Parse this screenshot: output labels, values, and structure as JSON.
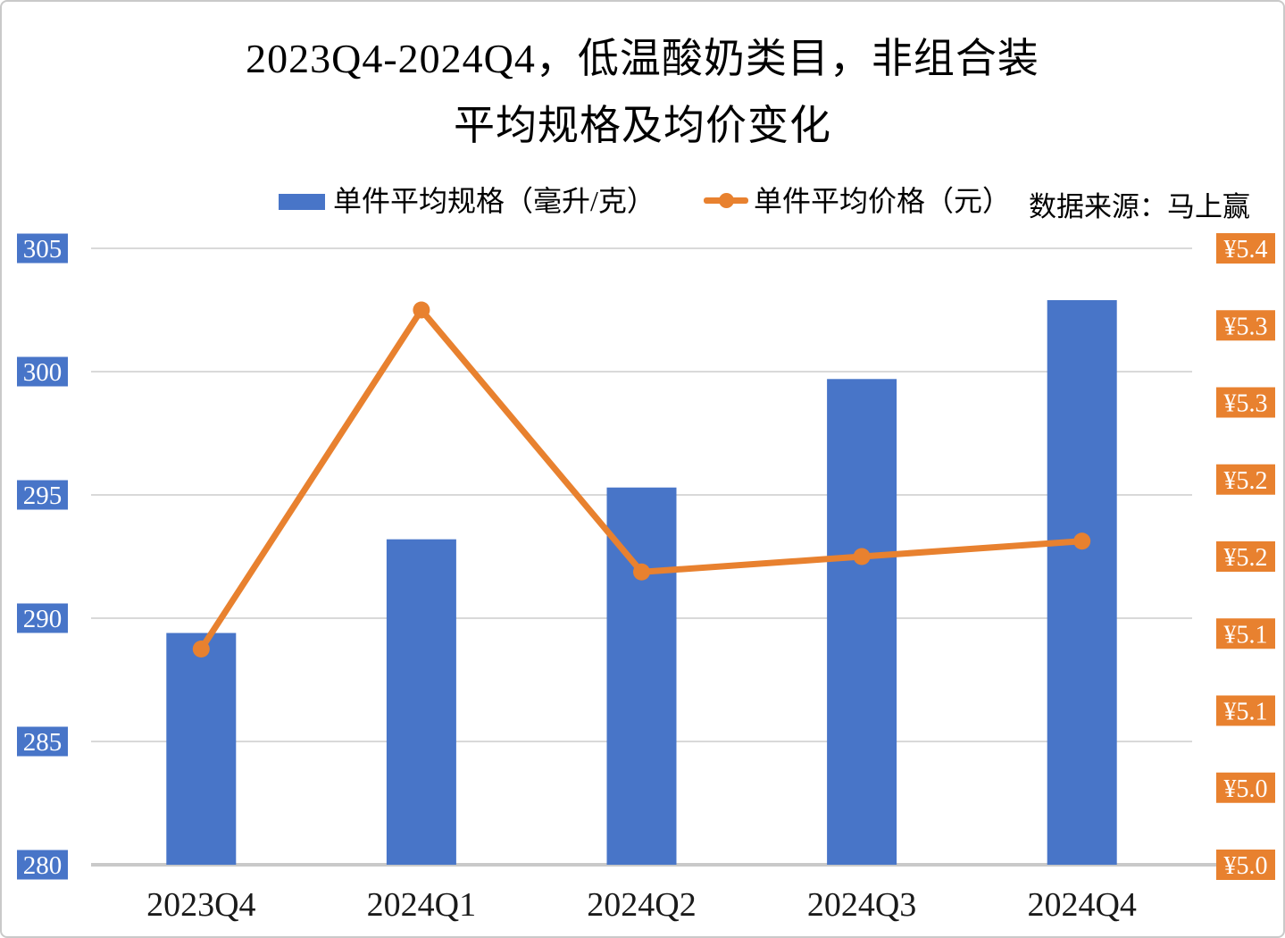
{
  "title": {
    "line1": "2023Q4-2024Q4，低温酸奶类目，非组合装",
    "line2": "平均规格及均价变化"
  },
  "legend": {
    "bar_label": "单件平均规格（毫升/克）",
    "line_label": "单件平均价格（元）",
    "source": "数据来源：马上赢"
  },
  "colors": {
    "bar": "#4875C8",
    "line": "#E8812F",
    "grid": "#D9D9D9",
    "axis_line": "#C9C9C9",
    "tick_box_left": "#4875C8",
    "tick_box_right": "#E8812F",
    "tick_text": "#FFFFFF",
    "x_label_text": "#1A1A1A"
  },
  "chart_data": {
    "type": "bar",
    "subtype": "combo-bar-line-dual-axis",
    "title": "2023Q4-2024Q4，低温酸奶类目，非组合装 平均规格及均价变化",
    "categories": [
      "2023Q4",
      "2024Q1",
      "2024Q2",
      "2024Q3",
      "2024Q4"
    ],
    "series": [
      {
        "name": "单件平均规格（毫升/克）",
        "type": "bar",
        "axis": "left",
        "values": [
          289.4,
          293.2,
          295.3,
          299.7,
          302.9
        ]
      },
      {
        "name": "单件平均价格（元）",
        "type": "line",
        "axis": "right",
        "values": [
          5.14,
          5.36,
          5.19,
          5.2,
          5.21
        ]
      }
    ],
    "left_axis": {
      "min": 280,
      "max": 305,
      "step": 5,
      "ticks": [
        305,
        300,
        295,
        290,
        285,
        280
      ]
    },
    "right_axis": {
      "min": 5.0,
      "max": 5.4,
      "step": 0.05,
      "tick_labels": [
        "¥5.4",
        "¥5.3",
        "¥5.3",
        "¥5.2",
        "¥5.2",
        "¥5.1",
        "¥5.1",
        "¥5.0",
        "¥5.0"
      ]
    },
    "grid": "horizontal",
    "legend_position": "top"
  }
}
